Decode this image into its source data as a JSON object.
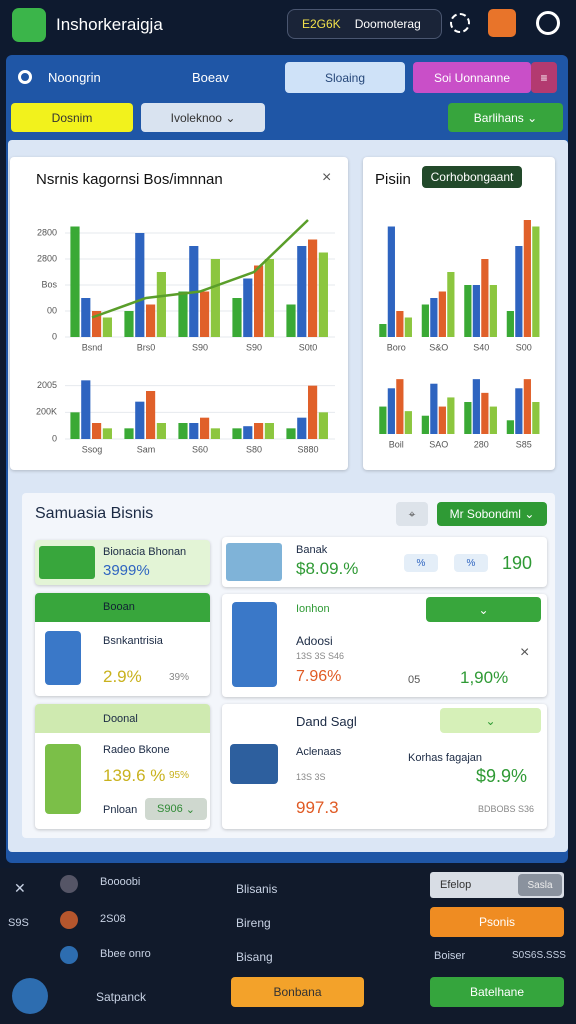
{
  "header": {
    "title": "Inshorkeraigja",
    "badge_code": "E2G6K",
    "badge_text": "Doomoterag"
  },
  "tabs": [
    "Noongrin",
    "Boeav",
    "Sloaing",
    "Soi Uonnanne"
  ],
  "toolbar": {
    "left": "Dosnim",
    "dropdown": "Ivoleknoo",
    "right": "Barlihans"
  },
  "chart_data": [
    {
      "type": "bar",
      "title": "Nsrnis kagornsi Bos/imnnan",
      "categories": [
        "Bsnd",
        "Brs0",
        "S90",
        "S90",
        "S0t0"
      ],
      "series": [
        {
          "color": "#3aa935",
          "values": [
            85,
            20,
            35,
            30,
            25
          ]
        },
        {
          "color": "#2e64c0",
          "values": [
            30,
            80,
            70,
            45,
            70
          ]
        },
        {
          "color": "#e0602a",
          "values": [
            20,
            25,
            35,
            55,
            75
          ]
        },
        {
          "color": "#8cc63f",
          "values": [
            15,
            50,
            60,
            60,
            65
          ]
        }
      ],
      "trend": {
        "color": "#5a9e2a",
        "values": [
          15,
          30,
          35,
          50,
          90
        ]
      },
      "ylim": [
        0,
        100
      ],
      "yticks": [
        0,
        {
          "value": 20,
          "label": "00"
        },
        {
          "value": 40,
          "label": "Bos"
        },
        {
          "value": 60,
          "label": "2800"
        },
        {
          "value": 80,
          "label": "2800"
        }
      ],
      "grid": true
    },
    {
      "type": "bar",
      "categories": [
        "Ssog",
        "Sam",
        "S60",
        "S80",
        "S880"
      ],
      "series": [
        {
          "color": "#3aa935",
          "values": [
            25,
            10,
            15,
            10,
            10
          ]
        },
        {
          "color": "#2e64c0",
          "values": [
            55,
            35,
            15,
            12,
            20
          ]
        },
        {
          "color": "#e0602a",
          "values": [
            15,
            45,
            20,
            15,
            50
          ]
        },
        {
          "color": "#8cc63f",
          "values": [
            10,
            15,
            10,
            15,
            25
          ]
        }
      ],
      "ylim": [
        0,
        60
      ],
      "yticks": [
        0,
        {
          "value": 25,
          "label": "200K"
        },
        {
          "value": 50,
          "label": "2005"
        }
      ],
      "grid": true
    },
    {
      "type": "bar",
      "title": "Pisiin",
      "badge": "Corhobongaant",
      "categories": [
        "Boro",
        "S&O",
        "S40",
        "S00"
      ],
      "series": [
        {
          "color": "#3aa935",
          "values": [
            10,
            25,
            40,
            20
          ]
        },
        {
          "color": "#2e64c0",
          "values": [
            85,
            30,
            40,
            70
          ]
        },
        {
          "color": "#e0602a",
          "values": [
            20,
            35,
            60,
            90
          ]
        },
        {
          "color": "#8cc63f",
          "values": [
            15,
            50,
            40,
            85
          ]
        }
      ],
      "ylim": [
        0,
        100
      ],
      "grid": true
    },
    {
      "type": "bar",
      "categories": [
        "Boil",
        "SAO",
        "280",
        "S85"
      ],
      "series": [
        {
          "color": "#3aa935",
          "values": [
            30,
            20,
            35,
            15
          ]
        },
        {
          "color": "#2e64c0",
          "values": [
            50,
            55,
            60,
            50
          ]
        },
        {
          "color": "#e0602a",
          "values": [
            60,
            30,
            45,
            60
          ]
        },
        {
          "color": "#8cc63f",
          "values": [
            25,
            40,
            30,
            35
          ]
        }
      ],
      "ylim": [
        0,
        70
      ],
      "grid": true
    }
  ],
  "summary": {
    "title": "Samuasia Bisnis",
    "button": "Mr Sobondml",
    "left": [
      {
        "title": "Bionacia Bhonan",
        "value": "3999%"
      },
      {
        "header": "Booan",
        "label": "Bsnkantrisia",
        "value": "2.9%",
        "sub": "39%"
      },
      {
        "header": "Doonal",
        "label": "Radeo Bkone",
        "value": "139.6 %",
        "sub": "95%",
        "footer": "Pnloan",
        "button": "S906"
      }
    ],
    "right": [
      {
        "label": "Banak",
        "value": "$8.09.%",
        "chip1": "%",
        "chip2": "%",
        "number": "190"
      },
      {
        "header": "Ionhon",
        "label": "Adoosi",
        "sub": "13S 3S S46",
        "value": "7.96%",
        "sub2": "05",
        "value2": "1,90%"
      },
      {
        "header": "Dand Sagl",
        "label": "Aclenaas",
        "sub": "13S 3S",
        "value": "997.3",
        "label2": "Korhas fagajan",
        "value2": "$9.9%",
        "sub2": "BDBOBS S36"
      }
    ]
  },
  "bottom": {
    "left": [
      "Boooobi",
      "2S08",
      "Bbee onro"
    ],
    "left_side": [
      "S9S"
    ],
    "left_button": "Satpanck",
    "middle": [
      "Blisanis",
      "Bireng",
      "Bisang"
    ],
    "right_field": "Efelop",
    "right_field_value": "Sasla",
    "right_button": "Psonis",
    "right_label": "Boiser",
    "right_value": "S0S6S.SSS",
    "button_orange": "Bonbana",
    "button_green": "Batelhane"
  }
}
